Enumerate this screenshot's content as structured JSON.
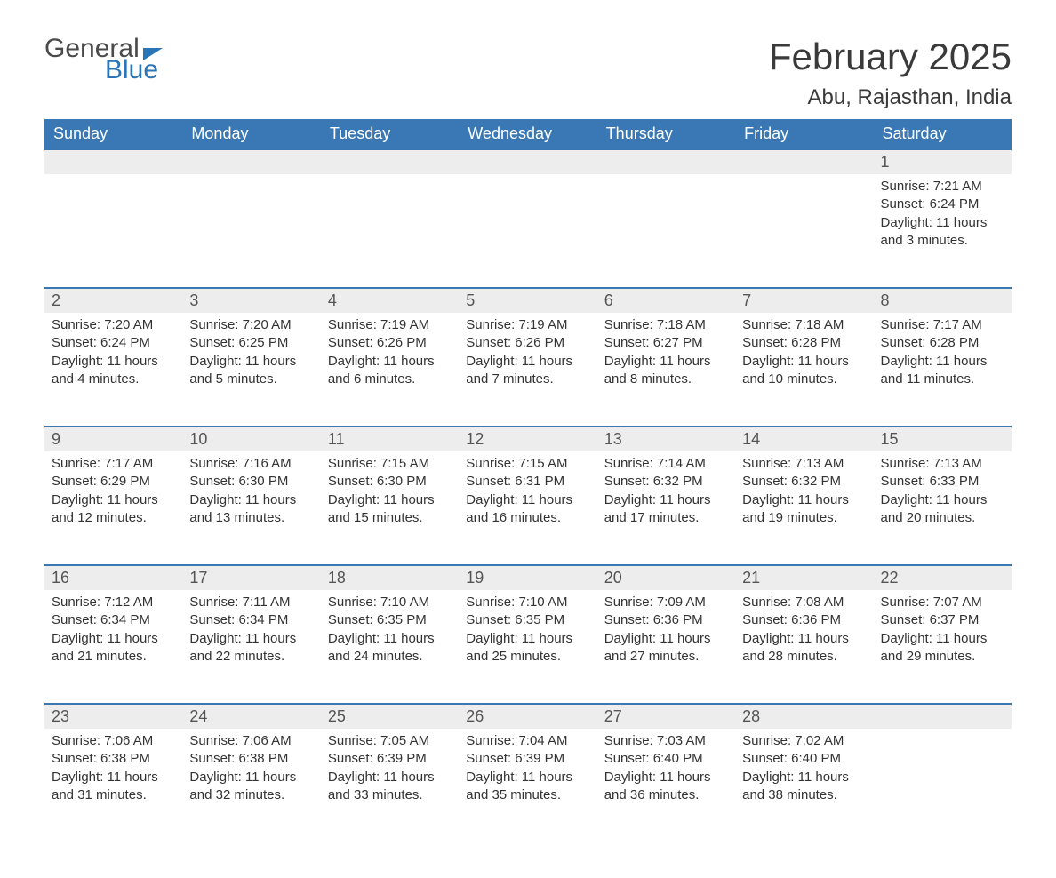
{
  "brand": {
    "word1": "General",
    "word2": "Blue",
    "accent_color": "#2a74b8",
    "text_color": "#4a4a4a"
  },
  "title": "February 2025",
  "location": "Abu, Rajasthan, India",
  "styling": {
    "header_bg": "#3a78b5",
    "header_text": "#ffffff",
    "daynum_bg": "#ededed",
    "row_border": "#3a78b5",
    "body_text": "#333333",
    "title_fontsize": 42,
    "location_fontsize": 24,
    "header_fontsize": 18,
    "daynum_fontsize": 18,
    "data_fontsize": 15,
    "page_bg": "#ffffff"
  },
  "weekdays": [
    "Sunday",
    "Monday",
    "Tuesday",
    "Wednesday",
    "Thursday",
    "Friday",
    "Saturday"
  ],
  "weeks": [
    [
      null,
      null,
      null,
      null,
      null,
      null,
      {
        "day": "1",
        "sunrise": "7:21 AM",
        "sunset": "6:24 PM",
        "daylight": "11 hours and 3 minutes."
      }
    ],
    [
      {
        "day": "2",
        "sunrise": "7:20 AM",
        "sunset": "6:24 PM",
        "daylight": "11 hours and 4 minutes."
      },
      {
        "day": "3",
        "sunrise": "7:20 AM",
        "sunset": "6:25 PM",
        "daylight": "11 hours and 5 minutes."
      },
      {
        "day": "4",
        "sunrise": "7:19 AM",
        "sunset": "6:26 PM",
        "daylight": "11 hours and 6 minutes."
      },
      {
        "day": "5",
        "sunrise": "7:19 AM",
        "sunset": "6:26 PM",
        "daylight": "11 hours and 7 minutes."
      },
      {
        "day": "6",
        "sunrise": "7:18 AM",
        "sunset": "6:27 PM",
        "daylight": "11 hours and 8 minutes."
      },
      {
        "day": "7",
        "sunrise": "7:18 AM",
        "sunset": "6:28 PM",
        "daylight": "11 hours and 10 minutes."
      },
      {
        "day": "8",
        "sunrise": "7:17 AM",
        "sunset": "6:28 PM",
        "daylight": "11 hours and 11 minutes."
      }
    ],
    [
      {
        "day": "9",
        "sunrise": "7:17 AM",
        "sunset": "6:29 PM",
        "daylight": "11 hours and 12 minutes."
      },
      {
        "day": "10",
        "sunrise": "7:16 AM",
        "sunset": "6:30 PM",
        "daylight": "11 hours and 13 minutes."
      },
      {
        "day": "11",
        "sunrise": "7:15 AM",
        "sunset": "6:30 PM",
        "daylight": "11 hours and 15 minutes."
      },
      {
        "day": "12",
        "sunrise": "7:15 AM",
        "sunset": "6:31 PM",
        "daylight": "11 hours and 16 minutes."
      },
      {
        "day": "13",
        "sunrise": "7:14 AM",
        "sunset": "6:32 PM",
        "daylight": "11 hours and 17 minutes."
      },
      {
        "day": "14",
        "sunrise": "7:13 AM",
        "sunset": "6:32 PM",
        "daylight": "11 hours and 19 minutes."
      },
      {
        "day": "15",
        "sunrise": "7:13 AM",
        "sunset": "6:33 PM",
        "daylight": "11 hours and 20 minutes."
      }
    ],
    [
      {
        "day": "16",
        "sunrise": "7:12 AM",
        "sunset": "6:34 PM",
        "daylight": "11 hours and 21 minutes."
      },
      {
        "day": "17",
        "sunrise": "7:11 AM",
        "sunset": "6:34 PM",
        "daylight": "11 hours and 22 minutes."
      },
      {
        "day": "18",
        "sunrise": "7:10 AM",
        "sunset": "6:35 PM",
        "daylight": "11 hours and 24 minutes."
      },
      {
        "day": "19",
        "sunrise": "7:10 AM",
        "sunset": "6:35 PM",
        "daylight": "11 hours and 25 minutes."
      },
      {
        "day": "20",
        "sunrise": "7:09 AM",
        "sunset": "6:36 PM",
        "daylight": "11 hours and 27 minutes."
      },
      {
        "day": "21",
        "sunrise": "7:08 AM",
        "sunset": "6:36 PM",
        "daylight": "11 hours and 28 minutes."
      },
      {
        "day": "22",
        "sunrise": "7:07 AM",
        "sunset": "6:37 PM",
        "daylight": "11 hours and 29 minutes."
      }
    ],
    [
      {
        "day": "23",
        "sunrise": "7:06 AM",
        "sunset": "6:38 PM",
        "daylight": "11 hours and 31 minutes."
      },
      {
        "day": "24",
        "sunrise": "7:06 AM",
        "sunset": "6:38 PM",
        "daylight": "11 hours and 32 minutes."
      },
      {
        "day": "25",
        "sunrise": "7:05 AM",
        "sunset": "6:39 PM",
        "daylight": "11 hours and 33 minutes."
      },
      {
        "day": "26",
        "sunrise": "7:04 AM",
        "sunset": "6:39 PM",
        "daylight": "11 hours and 35 minutes."
      },
      {
        "day": "27",
        "sunrise": "7:03 AM",
        "sunset": "6:40 PM",
        "daylight": "11 hours and 36 minutes."
      },
      {
        "day": "28",
        "sunrise": "7:02 AM",
        "sunset": "6:40 PM",
        "daylight": "11 hours and 38 minutes."
      },
      null
    ]
  ],
  "labels": {
    "sunrise": "Sunrise: ",
    "sunset": "Sunset: ",
    "daylight": "Daylight: "
  }
}
